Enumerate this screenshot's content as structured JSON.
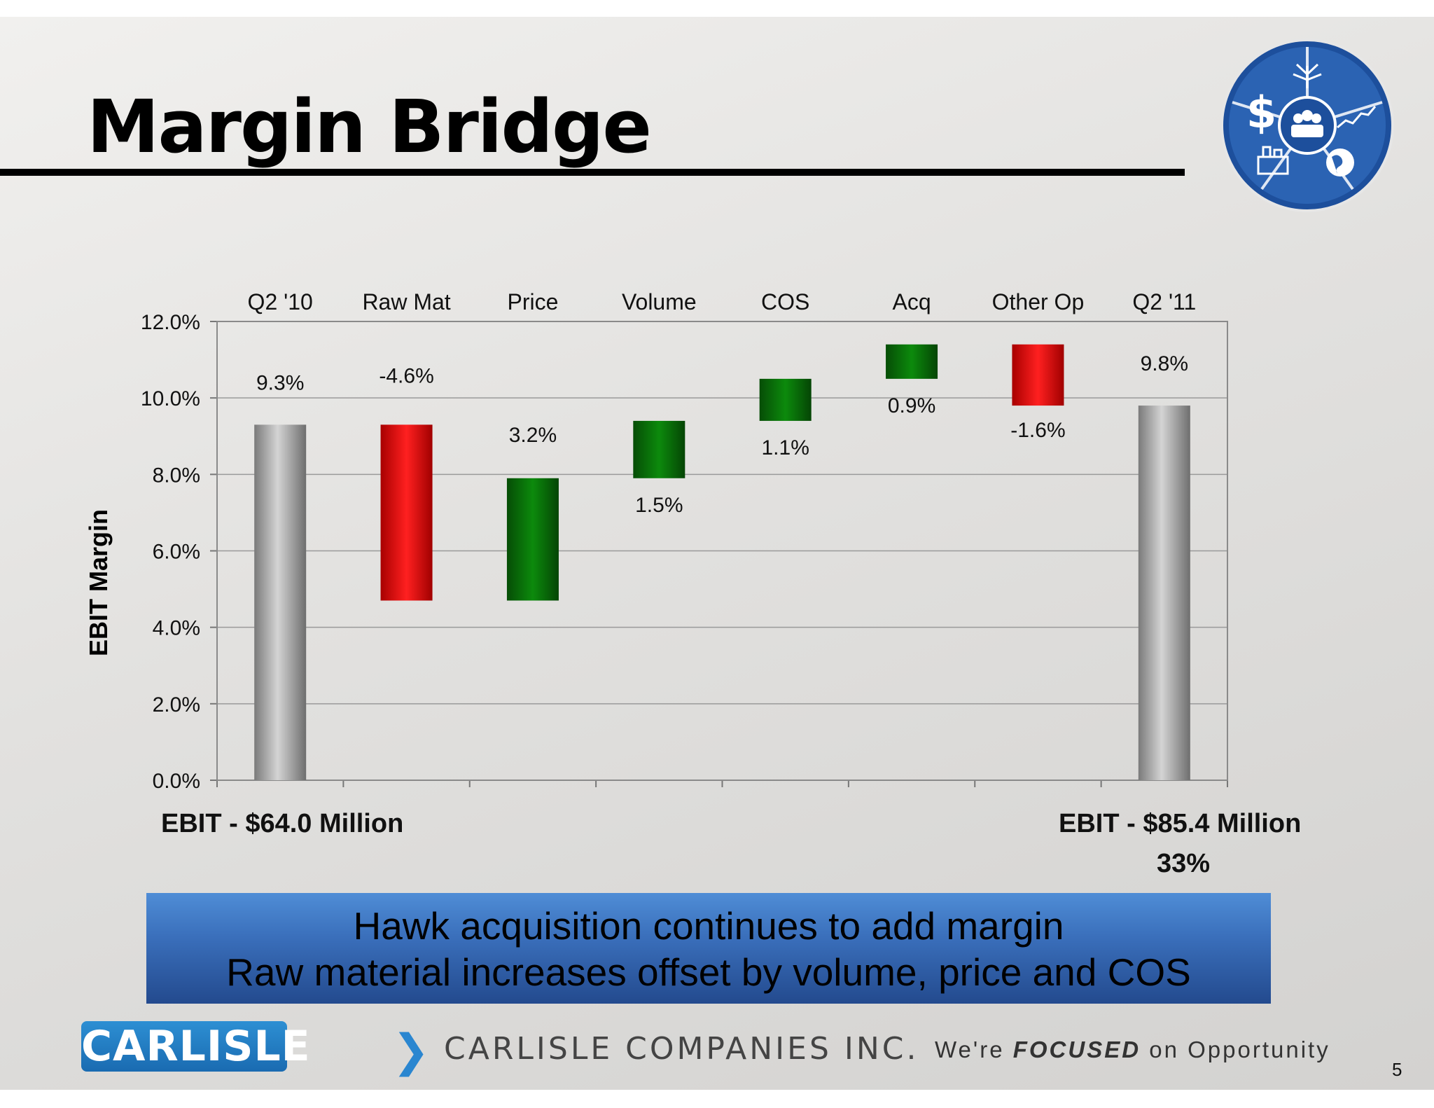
{
  "slide": {
    "title": "Margin Bridge",
    "ebit_left": "EBIT - $64.0 Million",
    "ebit_right": "EBIT - $85.4 Million",
    "ebit_growth": "33%",
    "banner_line1": "Hawk acquisition continues to add margin",
    "banner_line2": "Raw material increases offset by volume, price and COS",
    "footer_logo": "CARLISLE",
    "footer_chevron": "❯",
    "footer_company": "CARLISLE COMPANIES INC.",
    "footer_tagline_pre": "We're ",
    "footer_tagline_bold": "FOCUSED",
    "footer_tagline_post": " on Opportunity",
    "page_number": "5",
    "logo_dollar": "$",
    "colors": {
      "increase": "#0a7a0a",
      "decrease": "#e00000",
      "total": "#a8a8a8",
      "banner": "#3a6fbb"
    }
  },
  "chart_data": {
    "type": "bar",
    "subtype": "waterfall",
    "ylabel": "EBIT Margin",
    "ylim": [
      0,
      12
    ],
    "yticks": [
      "0.0%",
      "2.0%",
      "4.0%",
      "6.0%",
      "8.0%",
      "10.0%",
      "12.0%"
    ],
    "categories": [
      "Q2 '10",
      "Raw Mat",
      "Price",
      "Volume",
      "COS",
      "Acq",
      "Other Op",
      "Q2 '11"
    ],
    "bars": [
      {
        "category": "Q2 '10",
        "kind": "total",
        "from": 0,
        "to": 9.3,
        "label": "9.3%"
      },
      {
        "category": "Raw Mat",
        "kind": "decrease",
        "from": 9.3,
        "to": 4.7,
        "label": "-4.6%"
      },
      {
        "category": "Price",
        "kind": "increase",
        "from": 4.7,
        "to": 7.9,
        "label": "3.2%"
      },
      {
        "category": "Volume",
        "kind": "increase",
        "from": 7.9,
        "to": 9.4,
        "label": "1.5%"
      },
      {
        "category": "COS",
        "kind": "increase",
        "from": 9.4,
        "to": 10.5,
        "label": "1.1%"
      },
      {
        "category": "Acq",
        "kind": "increase",
        "from": 10.5,
        "to": 11.4,
        "label": "0.9%"
      },
      {
        "category": "Other Op",
        "kind": "decrease",
        "from": 11.4,
        "to": 9.8,
        "label": "-1.6%"
      },
      {
        "category": "Q2 '11",
        "kind": "total",
        "from": 0,
        "to": 9.8,
        "label": "9.8%"
      }
    ],
    "grid": true,
    "legend": "none"
  }
}
